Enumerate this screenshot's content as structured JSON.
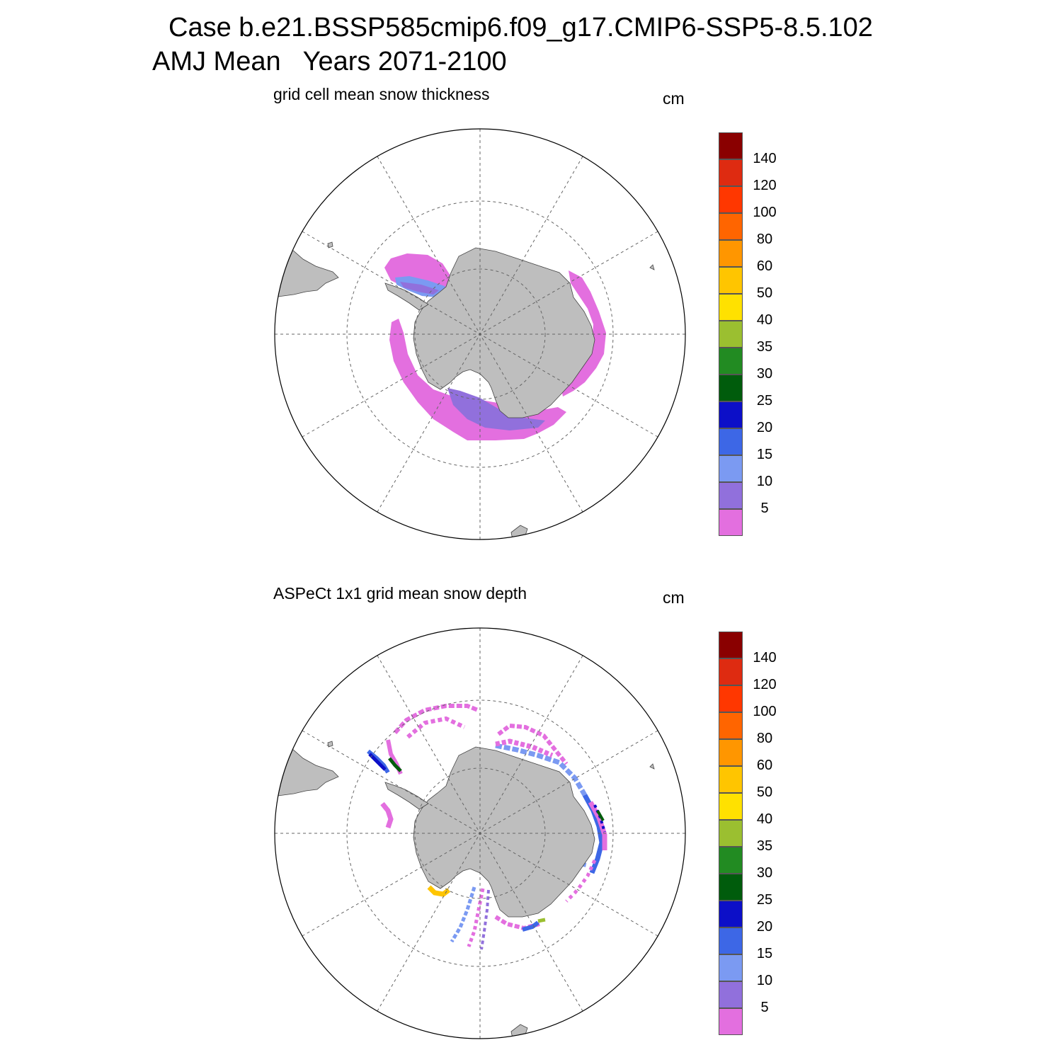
{
  "title_line1": "Case b.e21.BSSP585cmip6.f09_g17.CMIP6-SSP5-8.5.102",
  "title_line2": "AMJ Mean   Years 2071-2100",
  "panels": [
    {
      "subtitle": "grid cell mean snow thickness",
      "unit": "cm"
    },
    {
      "subtitle": "ASPeCt 1x1 grid mean snow depth",
      "unit": "cm"
    }
  ],
  "colorbar": {
    "labels": [
      "5",
      "10",
      "15",
      "20",
      "25",
      "30",
      "35",
      "40",
      "50",
      "60",
      "80",
      "100",
      "120",
      "140"
    ],
    "colors": [
      "#e36fdf",
      "#9170dc",
      "#7b9af2",
      "#3d67e6",
      "#0c0fc8",
      "#005c0c",
      "#228b22",
      "#9bbf30",
      "#ffe100",
      "#ffc500",
      "#ff9600",
      "#ff6500",
      "#ff3700",
      "#de2b11",
      "#8a0000"
    ]
  },
  "colors": {
    "land": "#bebebe",
    "coast": "#444444",
    "grid": "#666666",
    "ring": "#000000"
  }
}
